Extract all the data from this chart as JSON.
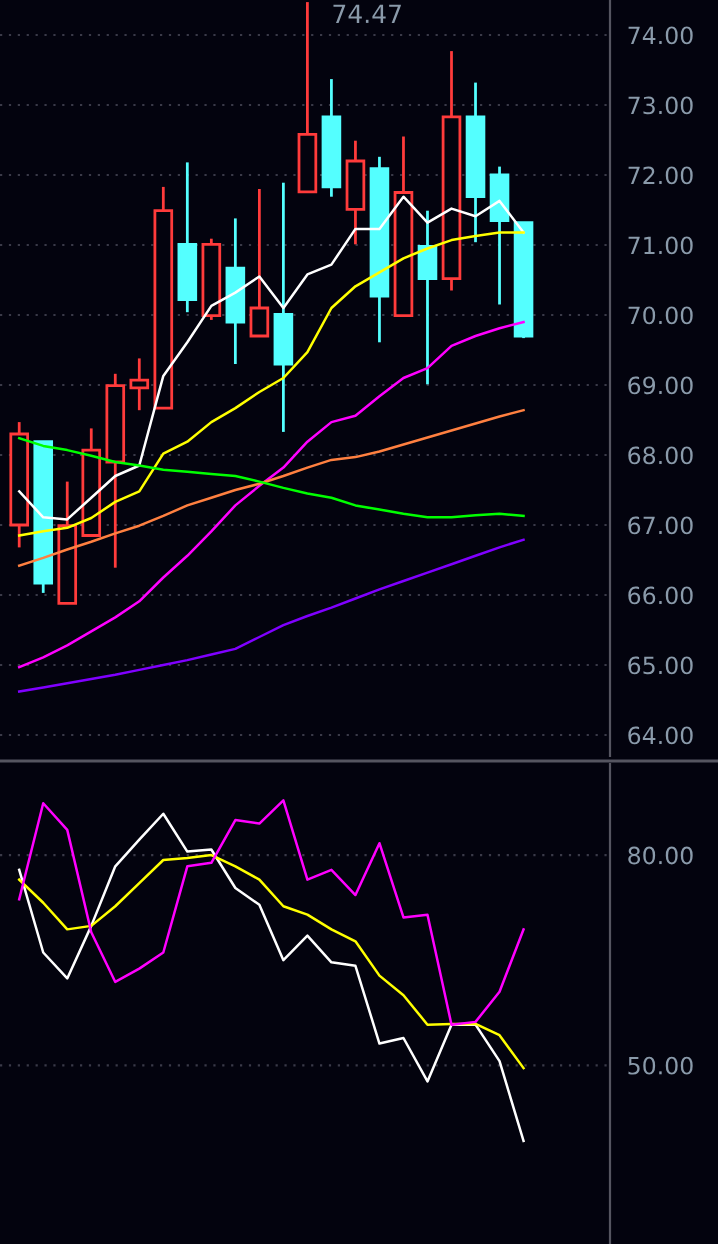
{
  "chart_data": [
    {
      "type": "candlestick",
      "categories": [
        null,
        null,
        null,
        null,
        null,
        null,
        null,
        null,
        null,
        null,
        null,
        null,
        null,
        null,
        null,
        null,
        null,
        null,
        null,
        null,
        null,
        null
      ],
      "ohlc": [
        [
          67.0,
          68.47,
          66.68,
          68.3
        ],
        [
          68.19,
          68.19,
          66.03,
          66.17
        ],
        [
          65.88,
          67.62,
          65.88,
          66.99
        ],
        [
          66.85,
          68.38,
          66.85,
          68.07
        ],
        [
          67.9,
          69.16,
          66.39,
          68.99
        ],
        [
          68.96,
          69.38,
          68.64,
          69.07
        ],
        [
          68.67,
          71.83,
          68.67,
          71.49
        ],
        [
          71.01,
          72.18,
          70.04,
          70.22
        ],
        [
          69.99,
          71.09,
          69.93,
          71.01
        ],
        [
          70.67,
          71.38,
          69.3,
          69.9
        ],
        [
          69.7,
          71.8,
          69.7,
          70.1
        ],
        [
          70.01,
          71.89,
          68.33,
          69.3
        ],
        [
          71.76,
          74.47,
          71.76,
          72.58
        ],
        [
          72.83,
          73.37,
          71.69,
          71.83
        ],
        [
          71.51,
          72.49,
          71.01,
          72.2
        ],
        [
          72.09,
          72.26,
          69.61,
          70.27
        ],
        [
          69.99,
          72.55,
          69.99,
          71.75
        ],
        [
          70.98,
          71.49,
          69.01,
          70.52
        ],
        [
          70.52,
          73.77,
          70.35,
          72.83
        ],
        [
          72.83,
          73.32,
          71.04,
          71.69
        ],
        [
          72.0,
          72.12,
          70.15,
          71.35
        ],
        [
          71.32,
          71.32,
          69.67,
          69.7
        ]
      ],
      "colors": [
        "#ff3b3b",
        "#54ffff",
        "#ff3b3b",
        "#ff3b3b",
        "#ff3b3b",
        "#ff3b3b",
        "#ff3b3b",
        "#54ffff",
        "#ff3b3b",
        "#54ffff",
        "#ff3b3b",
        "#54ffff",
        "#ff3b3b",
        "#54ffff",
        "#ff3b3b",
        "#54ffff",
        "#ff3b3b",
        "#54ffff",
        "#ff3b3b",
        "#54ffff",
        "#54ffff",
        "#54ffff"
      ],
      "series": [
        {
          "type": "line",
          "color": "#ffffff",
          "values": [
            67.48,
            67.11,
            67.08,
            67.39,
            67.7,
            67.85,
            69.13,
            69.61,
            70.13,
            70.32,
            70.55,
            70.1,
            70.58,
            70.72,
            71.23,
            71.23,
            71.69,
            71.32,
            71.52,
            71.41,
            71.63,
            71.18
          ]
        },
        {
          "type": "line",
          "color": "#ffff00",
          "values": [
            66.85,
            66.91,
            66.96,
            67.1,
            67.33,
            67.48,
            68.02,
            68.19,
            68.47,
            68.67,
            68.9,
            69.1,
            69.47,
            70.1,
            70.41,
            70.61,
            70.81,
            70.95,
            71.07,
            71.13,
            71.18,
            71.18
          ]
        },
        {
          "type": "line",
          "color": "#ff00ff",
          "values": [
            64.97,
            65.11,
            65.28,
            65.48,
            65.68,
            65.91,
            66.25,
            66.56,
            66.91,
            67.28,
            67.56,
            67.82,
            68.19,
            68.47,
            68.56,
            68.84,
            69.1,
            69.24,
            69.56,
            69.7,
            69.81,
            69.9
          ]
        },
        {
          "type": "line",
          "color": "#ff8040",
          "values": [
            66.42,
            66.53,
            66.65,
            66.76,
            66.88,
            66.99,
            67.13,
            67.28,
            67.39,
            67.5,
            67.59,
            67.7,
            67.82,
            67.93,
            67.97,
            68.05,
            68.15,
            68.25,
            68.35,
            68.45,
            68.55,
            68.64
          ]
        },
        {
          "type": "line",
          "color": "#00ff00",
          "values": [
            68.24,
            68.13,
            68.07,
            67.99,
            67.9,
            67.85,
            67.79,
            67.76,
            67.73,
            67.7,
            67.62,
            67.53,
            67.45,
            67.39,
            67.28,
            67.22,
            67.16,
            67.11,
            67.11,
            67.14,
            67.16,
            67.13
          ]
        },
        {
          "type": "line",
          "color": "#8000ff",
          "values": [
            64.62,
            64.68,
            64.74,
            64.8,
            64.86,
            64.93,
            65.0,
            65.07,
            65.15,
            65.23,
            65.4,
            65.57,
            65.7,
            65.82,
            65.95,
            66.08,
            66.2,
            66.32,
            66.44,
            66.56,
            66.68,
            66.79
          ]
        }
      ],
      "ylim": [
        63.7,
        74.5
      ],
      "yticks": [
        {
          "value": 64,
          "label": "64.00"
        },
        {
          "value": 65,
          "label": "65.00"
        },
        {
          "value": 66,
          "label": "66.00"
        },
        {
          "value": 67,
          "label": "67.00"
        },
        {
          "value": 68,
          "label": "68.00"
        },
        {
          "value": 69,
          "label": "69.00"
        },
        {
          "value": 70,
          "label": "70.00"
        },
        {
          "value": 71,
          "label": "71.00"
        },
        {
          "value": 72,
          "label": "72.00"
        },
        {
          "value": 73,
          "label": "73.00"
        },
        {
          "value": 74,
          "label": "74.00"
        }
      ],
      "annotations": [
        "74.47"
      ],
      "grid": "y",
      "tick_labels": "y"
    },
    {
      "type": "line",
      "categories": [
        null,
        null,
        null,
        null,
        null,
        null,
        null,
        null,
        null,
        null,
        null,
        null,
        null,
        null,
        null,
        null,
        null,
        null,
        null,
        null,
        null,
        null
      ],
      "series": [
        {
          "color": "#ffffff",
          "values": [
            77.9,
            66.1,
            62.4,
            69.9,
            78.4,
            82.2,
            85.9,
            80.5,
            80.8,
            75.3,
            72.9,
            65.0,
            68.5,
            64.7,
            64.2,
            53.1,
            53.9,
            47.7,
            55.8,
            55.8,
            50.6,
            39.2
          ]
        },
        {
          "color": "#ffff00",
          "values": [
            76.5,
            73.2,
            69.4,
            69.9,
            72.7,
            76.0,
            79.3,
            79.6,
            80.0,
            78.4,
            76.5,
            72.7,
            71.5,
            69.4,
            67.7,
            62.8,
            60.0,
            55.8,
            55.9,
            55.9,
            54.3,
            49.6
          ]
        },
        {
          "color": "#ff00ff",
          "values": [
            73.7,
            87.4,
            83.6,
            69.0,
            61.9,
            63.8,
            66.1,
            78.4,
            78.9,
            85.0,
            84.5,
            87.8,
            76.5,
            77.9,
            74.3,
            81.7,
            71.1,
            71.5,
            55.8,
            56.2,
            60.5,
            69.4
          ]
        }
      ],
      "ylim": [
        24.5,
        93
      ],
      "yticks": [
        {
          "value": 50,
          "label": "50.00"
        },
        {
          "value": 80,
          "label": "80.00"
        }
      ],
      "grid": "y",
      "tick_labels": "y"
    }
  ]
}
